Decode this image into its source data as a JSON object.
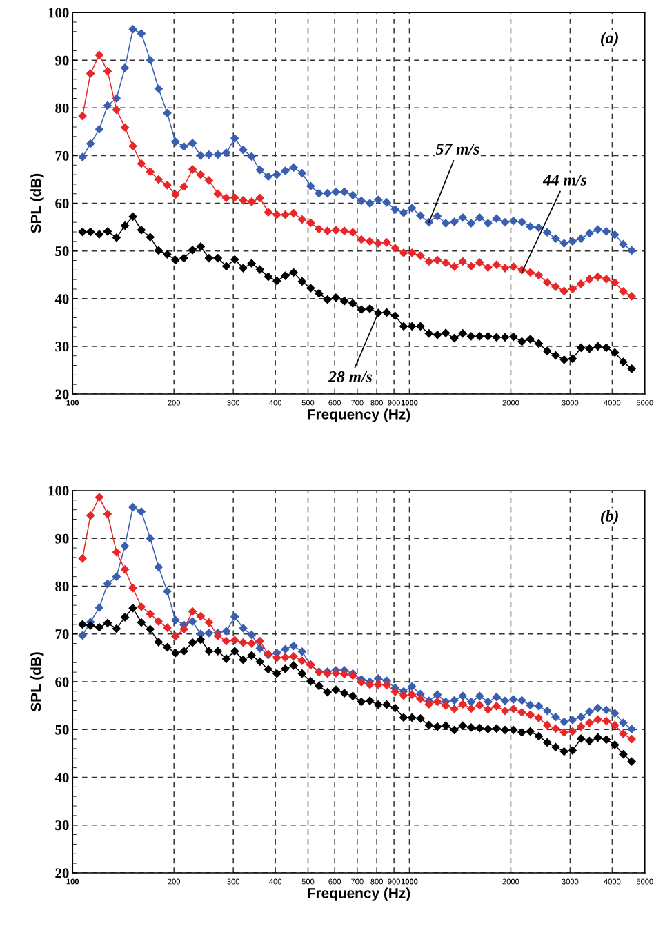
{
  "chart_data": [
    {
      "type": "line",
      "xlabel": "Frequency (Hz)",
      "ylabel": "SPL (dB)",
      "log": "x",
      "grid": true,
      "legend": false,
      "marker": "diamond",
      "line_style": "solid",
      "xlim": [
        100,
        5000
      ],
      "xticks": [
        100,
        200,
        300,
        400,
        500,
        600,
        700,
        800,
        900,
        1000,
        2000,
        3000,
        4000,
        5000
      ],
      "ylim": [
        20,
        100
      ],
      "yticks": [
        20,
        30,
        40,
        50,
        60,
        70,
        80,
        90,
        100
      ],
      "x": [
        107,
        113,
        120,
        127,
        135,
        143,
        151,
        160,
        170,
        180,
        191,
        202,
        214,
        227,
        240,
        254,
        270,
        286,
        303,
        321,
        340,
        360,
        381,
        404,
        428,
        453,
        480,
        509,
        539,
        571,
        605,
        641,
        679,
        720,
        763,
        808,
        856,
        907,
        961,
        1018,
        1078,
        1143,
        1211,
        1282,
        1359,
        1440,
        1525,
        1616,
        1712,
        1814,
        1922,
        2036,
        2157,
        2285,
        2421,
        2565,
        2718,
        2879,
        3050,
        3232,
        3424,
        3628,
        3843,
        4072,
        4314,
        4570
      ],
      "series": [
        {
          "color": "#3a5fb0",
          "values": [
            69.7,
            72.5,
            75.5,
            80.5,
            82.0,
            88.4,
            96.5,
            95.6,
            90.0,
            84.0,
            78.9,
            72.9,
            71.9,
            72.6,
            70.0,
            70.2,
            70.2,
            70.6,
            73.6,
            71.2,
            69.8,
            67.0,
            65.6,
            66.0,
            66.8,
            67.5,
            66.3,
            63.6,
            62.1,
            62.1,
            62.4,
            62.4,
            61.7,
            60.5,
            60.0,
            60.7,
            60.2,
            58.7,
            58.0,
            59.0,
            57.4,
            56.0,
            57.3,
            55.8,
            56.1,
            57.0,
            55.8,
            57.0,
            55.8,
            56.8,
            56.0,
            56.3,
            56.1,
            55.1,
            54.9,
            53.9,
            52.6,
            51.6,
            52.0,
            52.6,
            53.7,
            54.5,
            54.1,
            53.4,
            51.4,
            50.1
          ]
        },
        {
          "color": "#e8272a",
          "values": [
            78.3,
            87.2,
            91.1,
            87.7,
            79.6,
            75.9,
            72.0,
            68.3,
            66.6,
            65.0,
            63.8,
            61.8,
            63.5,
            67.1,
            66.0,
            64.8,
            62.0,
            61.1,
            61.2,
            60.6,
            60.3,
            61.1,
            58.1,
            57.6,
            57.6,
            57.9,
            56.6,
            55.9,
            54.6,
            54.2,
            54.4,
            54.2,
            53.9,
            52.4,
            52.0,
            51.6,
            51.8,
            50.6,
            49.6,
            49.6,
            49.0,
            47.8,
            48.1,
            47.5,
            46.7,
            47.8,
            46.8,
            47.6,
            46.5,
            47.1,
            46.4,
            46.7,
            46.0,
            45.5,
            44.9,
            43.4,
            42.5,
            41.6,
            42.0,
            43.1,
            44.1,
            44.6,
            44.1,
            43.4,
            41.5,
            40.5
          ]
        },
        {
          "color": "#000000",
          "values": [
            54.0,
            54.0,
            53.5,
            54.1,
            52.8,
            55.3,
            57.2,
            54.4,
            52.9,
            50.1,
            49.3,
            48.1,
            48.5,
            50.2,
            50.9,
            48.5,
            48.5,
            46.8,
            48.2,
            46.4,
            47.4,
            46.1,
            44.6,
            43.7,
            44.8,
            45.5,
            43.6,
            42.2,
            41.1,
            39.8,
            40.2,
            39.5,
            39.0,
            37.7,
            37.9,
            37.0,
            37.1,
            36.4,
            34.2,
            34.2,
            34.2,
            32.7,
            32.4,
            32.8,
            31.7,
            32.7,
            32.1,
            32.1,
            32.1,
            31.9,
            31.9,
            32.0,
            31.0,
            31.5,
            30.6,
            29.0,
            28.1,
            27.2,
            27.4,
            29.7,
            29.5,
            30.0,
            29.7,
            28.7,
            26.7,
            25.3
          ]
        }
      ],
      "annotations": [
        "(a)",
        {
          "text": "57 m/s",
          "x": 1143,
          "y": 56.0
        },
        {
          "text": "44 m/s",
          "x": 2157,
          "y": 45.5
        },
        {
          "text": "28 m/s",
          "x": 808,
          "y": 37.0
        }
      ]
    },
    {
      "type": "line",
      "xlabel": "Frequency (Hz)",
      "ylabel": "SPL (dB)",
      "log": "x",
      "grid": true,
      "legend": false,
      "marker": "diamond",
      "line_style": "solid",
      "xlim": [
        100,
        5000
      ],
      "xticks": [
        100,
        200,
        300,
        400,
        500,
        600,
        700,
        800,
        900,
        1000,
        2000,
        3000,
        4000,
        5000
      ],
      "ylim": [
        20,
        100
      ],
      "yticks": [
        20,
        30,
        40,
        50,
        60,
        70,
        80,
        90,
        100
      ],
      "x": [
        107,
        113,
        120,
        127,
        135,
        143,
        151,
        160,
        170,
        180,
        191,
        202,
        214,
        227,
        240,
        254,
        270,
        286,
        303,
        321,
        340,
        360,
        381,
        404,
        428,
        453,
        480,
        509,
        539,
        571,
        605,
        641,
        679,
        720,
        763,
        808,
        856,
        907,
        961,
        1018,
        1078,
        1143,
        1211,
        1282,
        1359,
        1440,
        1525,
        1616,
        1712,
        1814,
        1922,
        2036,
        2157,
        2285,
        2421,
        2565,
        2718,
        2879,
        3050,
        3232,
        3424,
        3628,
        3843,
        4072,
        4314,
        4570
      ],
      "series": [
        {
          "color": "#3a5fb0",
          "values": [
            69.7,
            72.5,
            75.5,
            80.5,
            82.0,
            88.4,
            96.5,
            95.6,
            90.0,
            84.0,
            78.9,
            72.9,
            71.9,
            72.6,
            70.0,
            70.2,
            70.2,
            70.6,
            73.6,
            71.2,
            69.8,
            67.0,
            65.6,
            66.0,
            66.8,
            67.5,
            66.3,
            63.6,
            62.1,
            62.1,
            62.4,
            62.4,
            61.7,
            60.5,
            60.0,
            60.7,
            60.2,
            58.7,
            58.0,
            59.0,
            57.4,
            56.0,
            57.3,
            55.8,
            56.1,
            57.0,
            55.8,
            57.0,
            55.8,
            56.8,
            56.0,
            56.3,
            56.1,
            55.1,
            54.9,
            53.9,
            52.6,
            51.6,
            52.0,
            52.6,
            53.7,
            54.5,
            54.1,
            53.4,
            51.4,
            50.1
          ]
        },
        {
          "color": "#e8272a",
          "values": [
            85.8,
            94.8,
            98.6,
            95.1,
            87.1,
            83.5,
            79.6,
            75.7,
            74.2,
            72.6,
            71.3,
            69.5,
            71.0,
            74.7,
            73.7,
            72.4,
            69.6,
            68.5,
            68.7,
            68.2,
            68.0,
            68.5,
            65.8,
            65.0,
            65.1,
            65.3,
            64.4,
            63.5,
            62.0,
            61.7,
            61.8,
            61.6,
            61.3,
            59.9,
            59.4,
            59.4,
            59.3,
            57.9,
            57.1,
            57.3,
            56.4,
            55.3,
            55.8,
            55.0,
            54.3,
            55.3,
            54.4,
            55.1,
            54.2,
            54.9,
            53.9,
            54.3,
            53.6,
            53.1,
            52.4,
            50.9,
            50.2,
            49.4,
            49.6,
            50.6,
            51.4,
            52.1,
            51.8,
            50.9,
            49.1,
            48.0
          ]
        },
        {
          "color": "#000000",
          "values": [
            72.0,
            71.8,
            71.4,
            72.3,
            71.1,
            73.5,
            75.4,
            72.4,
            71.0,
            68.3,
            67.2,
            66.0,
            66.4,
            68.2,
            68.8,
            66.4,
            66.4,
            64.8,
            66.4,
            64.6,
            65.5,
            64.2,
            62.6,
            61.7,
            62.7,
            63.4,
            61.7,
            60.1,
            59.1,
            57.8,
            58.3,
            57.6,
            57.0,
            55.8,
            56.0,
            55.2,
            55.2,
            54.5,
            52.5,
            52.5,
            52.3,
            50.9,
            50.6,
            50.8,
            49.9,
            50.8,
            50.4,
            50.3,
            50.1,
            50.2,
            49.9,
            49.9,
            49.4,
            49.6,
            48.6,
            47.3,
            46.3,
            45.4,
            45.6,
            48.1,
            47.6,
            48.3,
            47.9,
            46.8,
            44.8,
            43.3
          ]
        }
      ],
      "annotations": [
        "(b)"
      ]
    }
  ]
}
